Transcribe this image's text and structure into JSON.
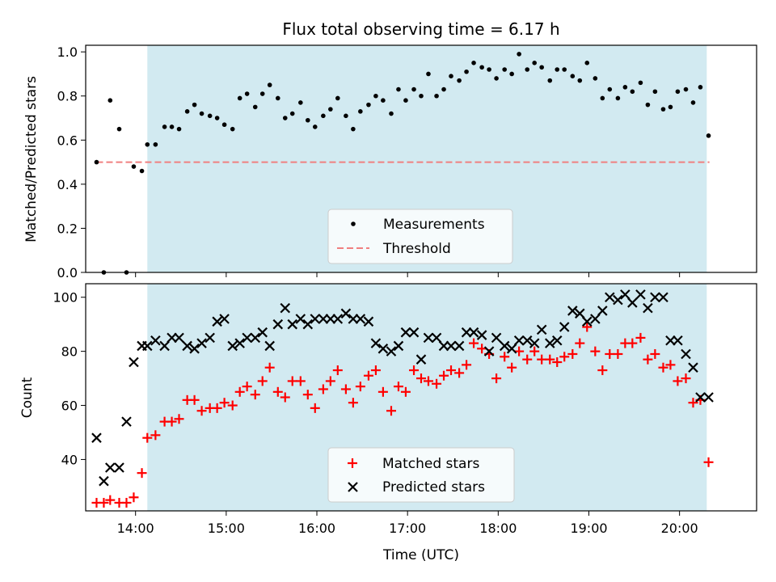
{
  "chart_data": [
    {
      "type": "scatter",
      "title": "Flux total observing time = 6.17 h",
      "ylabel": "Matched/Predicted stars",
      "xlabel": "",
      "ylim": [
        0,
        1.03
      ],
      "xlim_hours": [
        13.45,
        20.85
      ],
      "yticks": [
        "0.0",
        "0.2",
        "0.4",
        "0.6",
        "0.8",
        "1.0"
      ],
      "ytick_values": [
        0,
        0.2,
        0.4,
        0.6,
        0.8,
        1.0
      ],
      "shaded_interval_hours": [
        14.13,
        20.3
      ],
      "shaded_color": "#add8e6",
      "threshold": {
        "name": "Threshold",
        "value": 0.5,
        "x_range_hours": [
          13.57,
          20.33
        ],
        "color": "#f08080"
      },
      "legend": [
        "Measurements",
        "Threshold"
      ],
      "legend_position": "lower center",
      "series": [
        {
          "name": "Measurements",
          "marker": "dot",
          "color": "#000000",
          "x_hours": [
            13.57,
            13.65,
            13.72,
            13.82,
            13.9,
            13.98,
            14.07,
            14.13,
            14.22,
            14.32,
            14.4,
            14.48,
            14.57,
            14.65,
            14.73,
            14.82,
            14.9,
            14.98,
            15.07,
            15.15,
            15.23,
            15.32,
            15.4,
            15.48,
            15.57,
            15.65,
            15.73,
            15.82,
            15.9,
            15.98,
            16.07,
            16.15,
            16.23,
            16.32,
            16.4,
            16.48,
            16.57,
            16.65,
            16.73,
            16.82,
            16.9,
            16.98,
            17.07,
            17.15,
            17.23,
            17.32,
            17.4,
            17.48,
            17.57,
            17.65,
            17.73,
            17.82,
            17.9,
            17.98,
            18.07,
            18.15,
            18.23,
            18.32,
            18.4,
            18.48,
            18.57,
            18.65,
            18.73,
            18.82,
            18.9,
            18.98,
            19.07,
            19.15,
            19.23,
            19.32,
            19.4,
            19.48,
            19.57,
            19.65,
            19.73,
            19.82,
            19.9,
            19.98,
            20.07,
            20.15,
            20.23,
            20.32
          ],
          "values": [
            0.5,
            0.0,
            0.78,
            0.65,
            0.0,
            0.48,
            0.46,
            0.58,
            0.58,
            0.66,
            0.66,
            0.65,
            0.73,
            0.76,
            0.72,
            0.71,
            0.7,
            0.67,
            0.65,
            0.79,
            0.81,
            0.75,
            0.81,
            0.85,
            0.79,
            0.7,
            0.72,
            0.77,
            0.69,
            0.66,
            0.71,
            0.74,
            0.79,
            0.71,
            0.65,
            0.73,
            0.76,
            0.8,
            0.78,
            0.72,
            0.83,
            0.78,
            0.83,
            0.8,
            0.9,
            0.8,
            0.83,
            0.89,
            0.87,
            0.91,
            0.95,
            0.93,
            0.92,
            0.88,
            0.92,
            0.9,
            0.99,
            0.92,
            0.95,
            0.93,
            0.87,
            0.92,
            0.92,
            0.89,
            0.87,
            0.95,
            0.88,
            0.79,
            0.83,
            0.79,
            0.84,
            0.82,
            0.86,
            0.76,
            0.82,
            0.74,
            0.75,
            0.82,
            0.83,
            0.77,
            0.84,
            0.62
          ]
        }
      ]
    },
    {
      "type": "scatter",
      "title": "",
      "ylabel": "Count",
      "xlabel": "Time (UTC)",
      "ylim": [
        21,
        105
      ],
      "xlim_hours": [
        13.45,
        20.85
      ],
      "yticks": [
        "40",
        "60",
        "80",
        "100"
      ],
      "ytick_values": [
        40,
        60,
        80,
        100
      ],
      "xticks": [
        "14:00",
        "15:00",
        "16:00",
        "17:00",
        "18:00",
        "19:00",
        "20:00"
      ],
      "xtick_values_hours": [
        14,
        15,
        16,
        17,
        18,
        19,
        20
      ],
      "shaded_interval_hours": [
        14.13,
        20.3
      ],
      "shaded_color": "#add8e6",
      "legend": [
        "Matched stars",
        "Predicted stars"
      ],
      "legend_position": "lower center",
      "series": [
        {
          "name": "Matched stars",
          "marker": "plus",
          "color": "#ff0000",
          "x_hours": [
            13.57,
            13.65,
            13.72,
            13.82,
            13.9,
            13.98,
            14.07,
            14.13,
            14.22,
            14.32,
            14.4,
            14.48,
            14.57,
            14.65,
            14.73,
            14.82,
            14.9,
            14.98,
            15.07,
            15.15,
            15.23,
            15.32,
            15.4,
            15.48,
            15.57,
            15.65,
            15.73,
            15.82,
            15.9,
            15.98,
            16.07,
            16.15,
            16.23,
            16.32,
            16.4,
            16.48,
            16.57,
            16.65,
            16.73,
            16.82,
            16.9,
            16.98,
            17.07,
            17.15,
            17.23,
            17.32,
            17.4,
            17.48,
            17.57,
            17.65,
            17.73,
            17.82,
            17.9,
            17.98,
            18.07,
            18.15,
            18.23,
            18.32,
            18.4,
            18.48,
            18.57,
            18.65,
            18.73,
            18.82,
            18.9,
            18.98,
            19.07,
            19.15,
            19.23,
            19.32,
            19.4,
            19.48,
            19.57,
            19.65,
            19.73,
            19.82,
            19.9,
            19.98,
            20.07,
            20.15,
            20.23,
            20.32
          ],
          "values": [
            24,
            24,
            25,
            24,
            24,
            26,
            35,
            48,
            49,
            54,
            54,
            55,
            62,
            62,
            58,
            59,
            59,
            61,
            60,
            65,
            67,
            64,
            69,
            74,
            65,
            63,
            69,
            69,
            64,
            59,
            66,
            69,
            73,
            66,
            61,
            67,
            71,
            73,
            65,
            58,
            67,
            65,
            73,
            70,
            69,
            68,
            71,
            73,
            72,
            75,
            83,
            81,
            79,
            70,
            78,
            74,
            80,
            77,
            80,
            77,
            77,
            76,
            78,
            79,
            83,
            89,
            80,
            73,
            79,
            79,
            83,
            83,
            85,
            77,
            79,
            74,
            75,
            69,
            70,
            61,
            62,
            39
          ]
        },
        {
          "name": "Predicted stars",
          "marker": "x",
          "color": "#000000",
          "x_hours": [
            13.57,
            13.65,
            13.72,
            13.82,
            13.9,
            13.98,
            14.07,
            14.13,
            14.22,
            14.32,
            14.4,
            14.48,
            14.57,
            14.65,
            14.73,
            14.82,
            14.9,
            14.98,
            15.07,
            15.15,
            15.23,
            15.32,
            15.4,
            15.48,
            15.57,
            15.65,
            15.73,
            15.82,
            15.9,
            15.98,
            16.07,
            16.15,
            16.23,
            16.32,
            16.4,
            16.48,
            16.57,
            16.65,
            16.73,
            16.82,
            16.9,
            16.98,
            17.07,
            17.15,
            17.23,
            17.32,
            17.4,
            17.48,
            17.57,
            17.65,
            17.73,
            17.82,
            17.9,
            17.98,
            18.07,
            18.15,
            18.23,
            18.32,
            18.4,
            18.48,
            18.57,
            18.65,
            18.73,
            18.82,
            18.9,
            18.98,
            19.07,
            19.15,
            19.23,
            19.32,
            19.4,
            19.48,
            19.57,
            19.65,
            19.73,
            19.82,
            19.9,
            19.98,
            20.07,
            20.15,
            20.23,
            20.32
          ],
          "values": [
            48,
            32,
            37,
            37,
            54,
            76,
            82,
            82,
            84,
            82,
            85,
            85,
            82,
            81,
            83,
            85,
            91,
            92,
            82,
            83,
            85,
            85,
            87,
            82,
            90,
            96,
            90,
            92,
            90,
            92,
            92,
            92,
            92,
            94,
            92,
            92,
            91,
            83,
            81,
            80,
            82,
            87,
            87,
            77,
            85,
            85,
            82,
            82,
            82,
            87,
            87,
            86,
            80,
            85,
            82,
            81,
            84,
            84,
            83,
            88,
            83,
            84,
            89,
            95,
            94,
            91,
            92,
            95,
            100,
            99,
            101,
            98,
            101,
            96,
            100,
            100,
            84,
            84,
            79,
            74,
            63,
            63
          ]
        }
      ]
    }
  ]
}
